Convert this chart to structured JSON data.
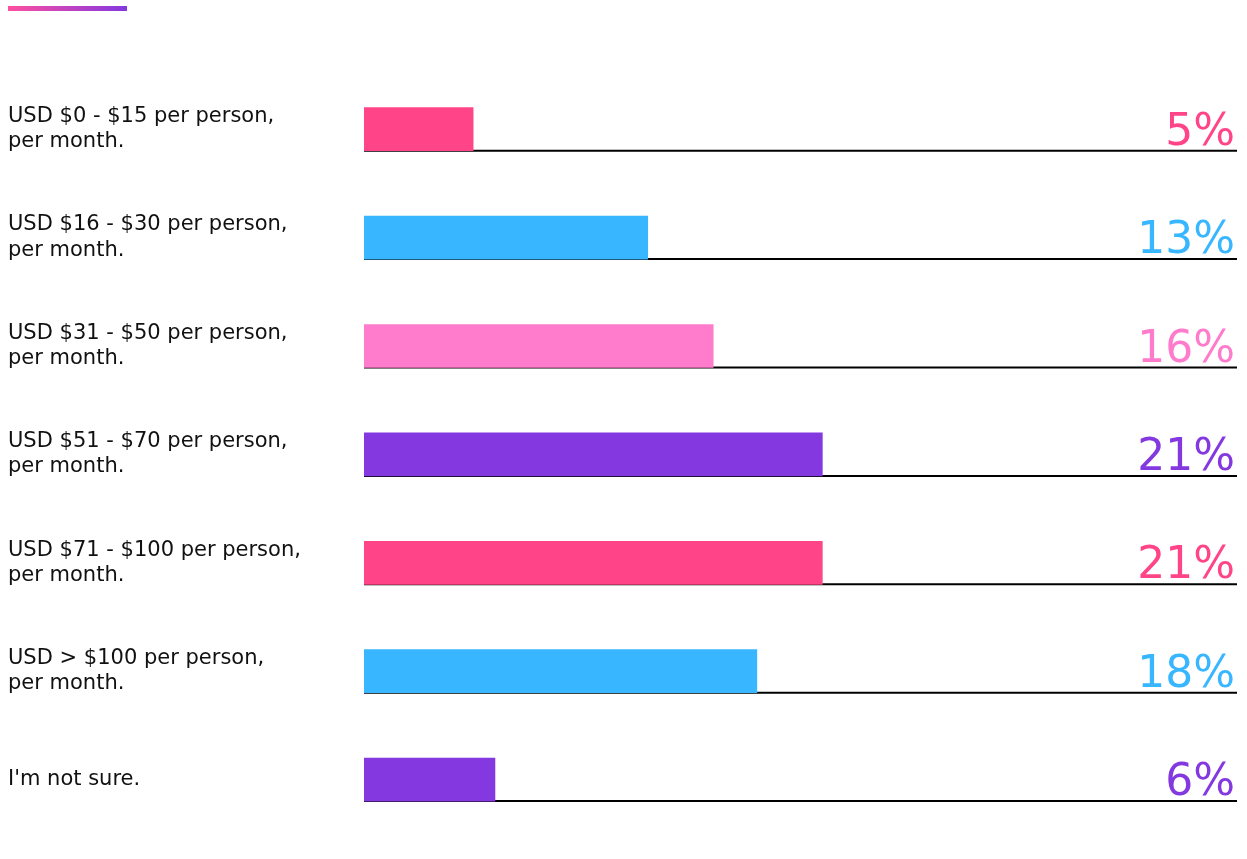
{
  "chart_data": {
    "type": "bar",
    "orientation": "horizontal",
    "categories": [
      "USD $0 - $15 per person, per month.",
      "USD $16 - $30 per person, per month.",
      "USD $31 - $50 per person, per month.",
      "USD $51 - $70 per person, per month.",
      "USD $71 - $100 per person, per month.",
      "USD > $100 per person, per month.",
      "I'm not sure."
    ],
    "values": [
      5,
      13,
      16,
      21,
      21,
      18,
      6
    ],
    "colors": [
      "#ff4588",
      "#38b6ff",
      "#ff7bcc",
      "#8338e0",
      "#ff4588",
      "#38b6ff",
      "#8338e0"
    ],
    "value_labels": [
      "5%",
      "13%",
      "16%",
      "21%",
      "21%",
      "18%",
      "6%"
    ],
    "tick_labels": "y"
  }
}
